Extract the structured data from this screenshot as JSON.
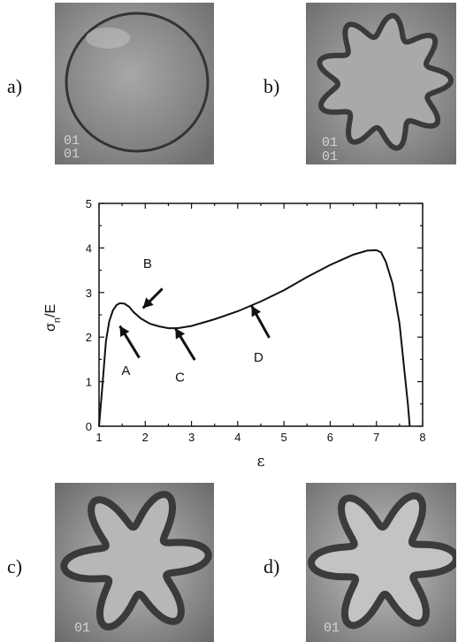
{
  "panels": {
    "a": {
      "label": "a)"
    },
    "b": {
      "label": "b)"
    },
    "c": {
      "label": "c)"
    },
    "d": {
      "label": "d)"
    }
  },
  "chart_data": {
    "type": "line",
    "xlabel": "ε",
    "ylabel_main": "σ",
    "ylabel_sub": "n",
    "ylabel_rest": "/E",
    "xlim": [
      1,
      8
    ],
    "ylim": [
      0,
      5
    ],
    "x_ticks": [
      1,
      2,
      3,
      4,
      5,
      6,
      7,
      8
    ],
    "y_ticks": [
      0,
      1,
      2,
      3,
      4,
      5
    ],
    "grid": false,
    "series": [
      {
        "x": [
          1.0,
          1.08,
          1.15,
          1.22,
          1.3,
          1.38,
          1.45,
          1.55,
          1.65,
          1.75,
          1.9,
          2.1,
          2.3,
          2.5,
          2.7,
          3.0,
          3.5,
          4.0,
          4.5,
          5.0,
          5.5,
          6.0,
          6.5,
          6.8,
          7.0,
          7.1,
          7.2,
          7.35,
          7.5,
          7.6,
          7.68,
          7.72
        ],
        "y": [
          0.0,
          1.0,
          1.9,
          2.35,
          2.6,
          2.72,
          2.76,
          2.75,
          2.68,
          2.56,
          2.42,
          2.3,
          2.24,
          2.2,
          2.2,
          2.25,
          2.4,
          2.58,
          2.8,
          3.05,
          3.35,
          3.62,
          3.85,
          3.94,
          3.95,
          3.9,
          3.7,
          3.2,
          2.3,
          1.3,
          0.5,
          0.0
        ]
      }
    ],
    "annotations": [
      {
        "text": "A",
        "x": 1.45,
        "y": 2.25
      },
      {
        "text": "B",
        "x": 1.95,
        "y": 2.65
      },
      {
        "text": "C",
        "x": 2.65,
        "y": 2.2
      },
      {
        "text": "D",
        "x": 4.3,
        "y": 2.7
      }
    ]
  },
  "photo_stamp": "01"
}
